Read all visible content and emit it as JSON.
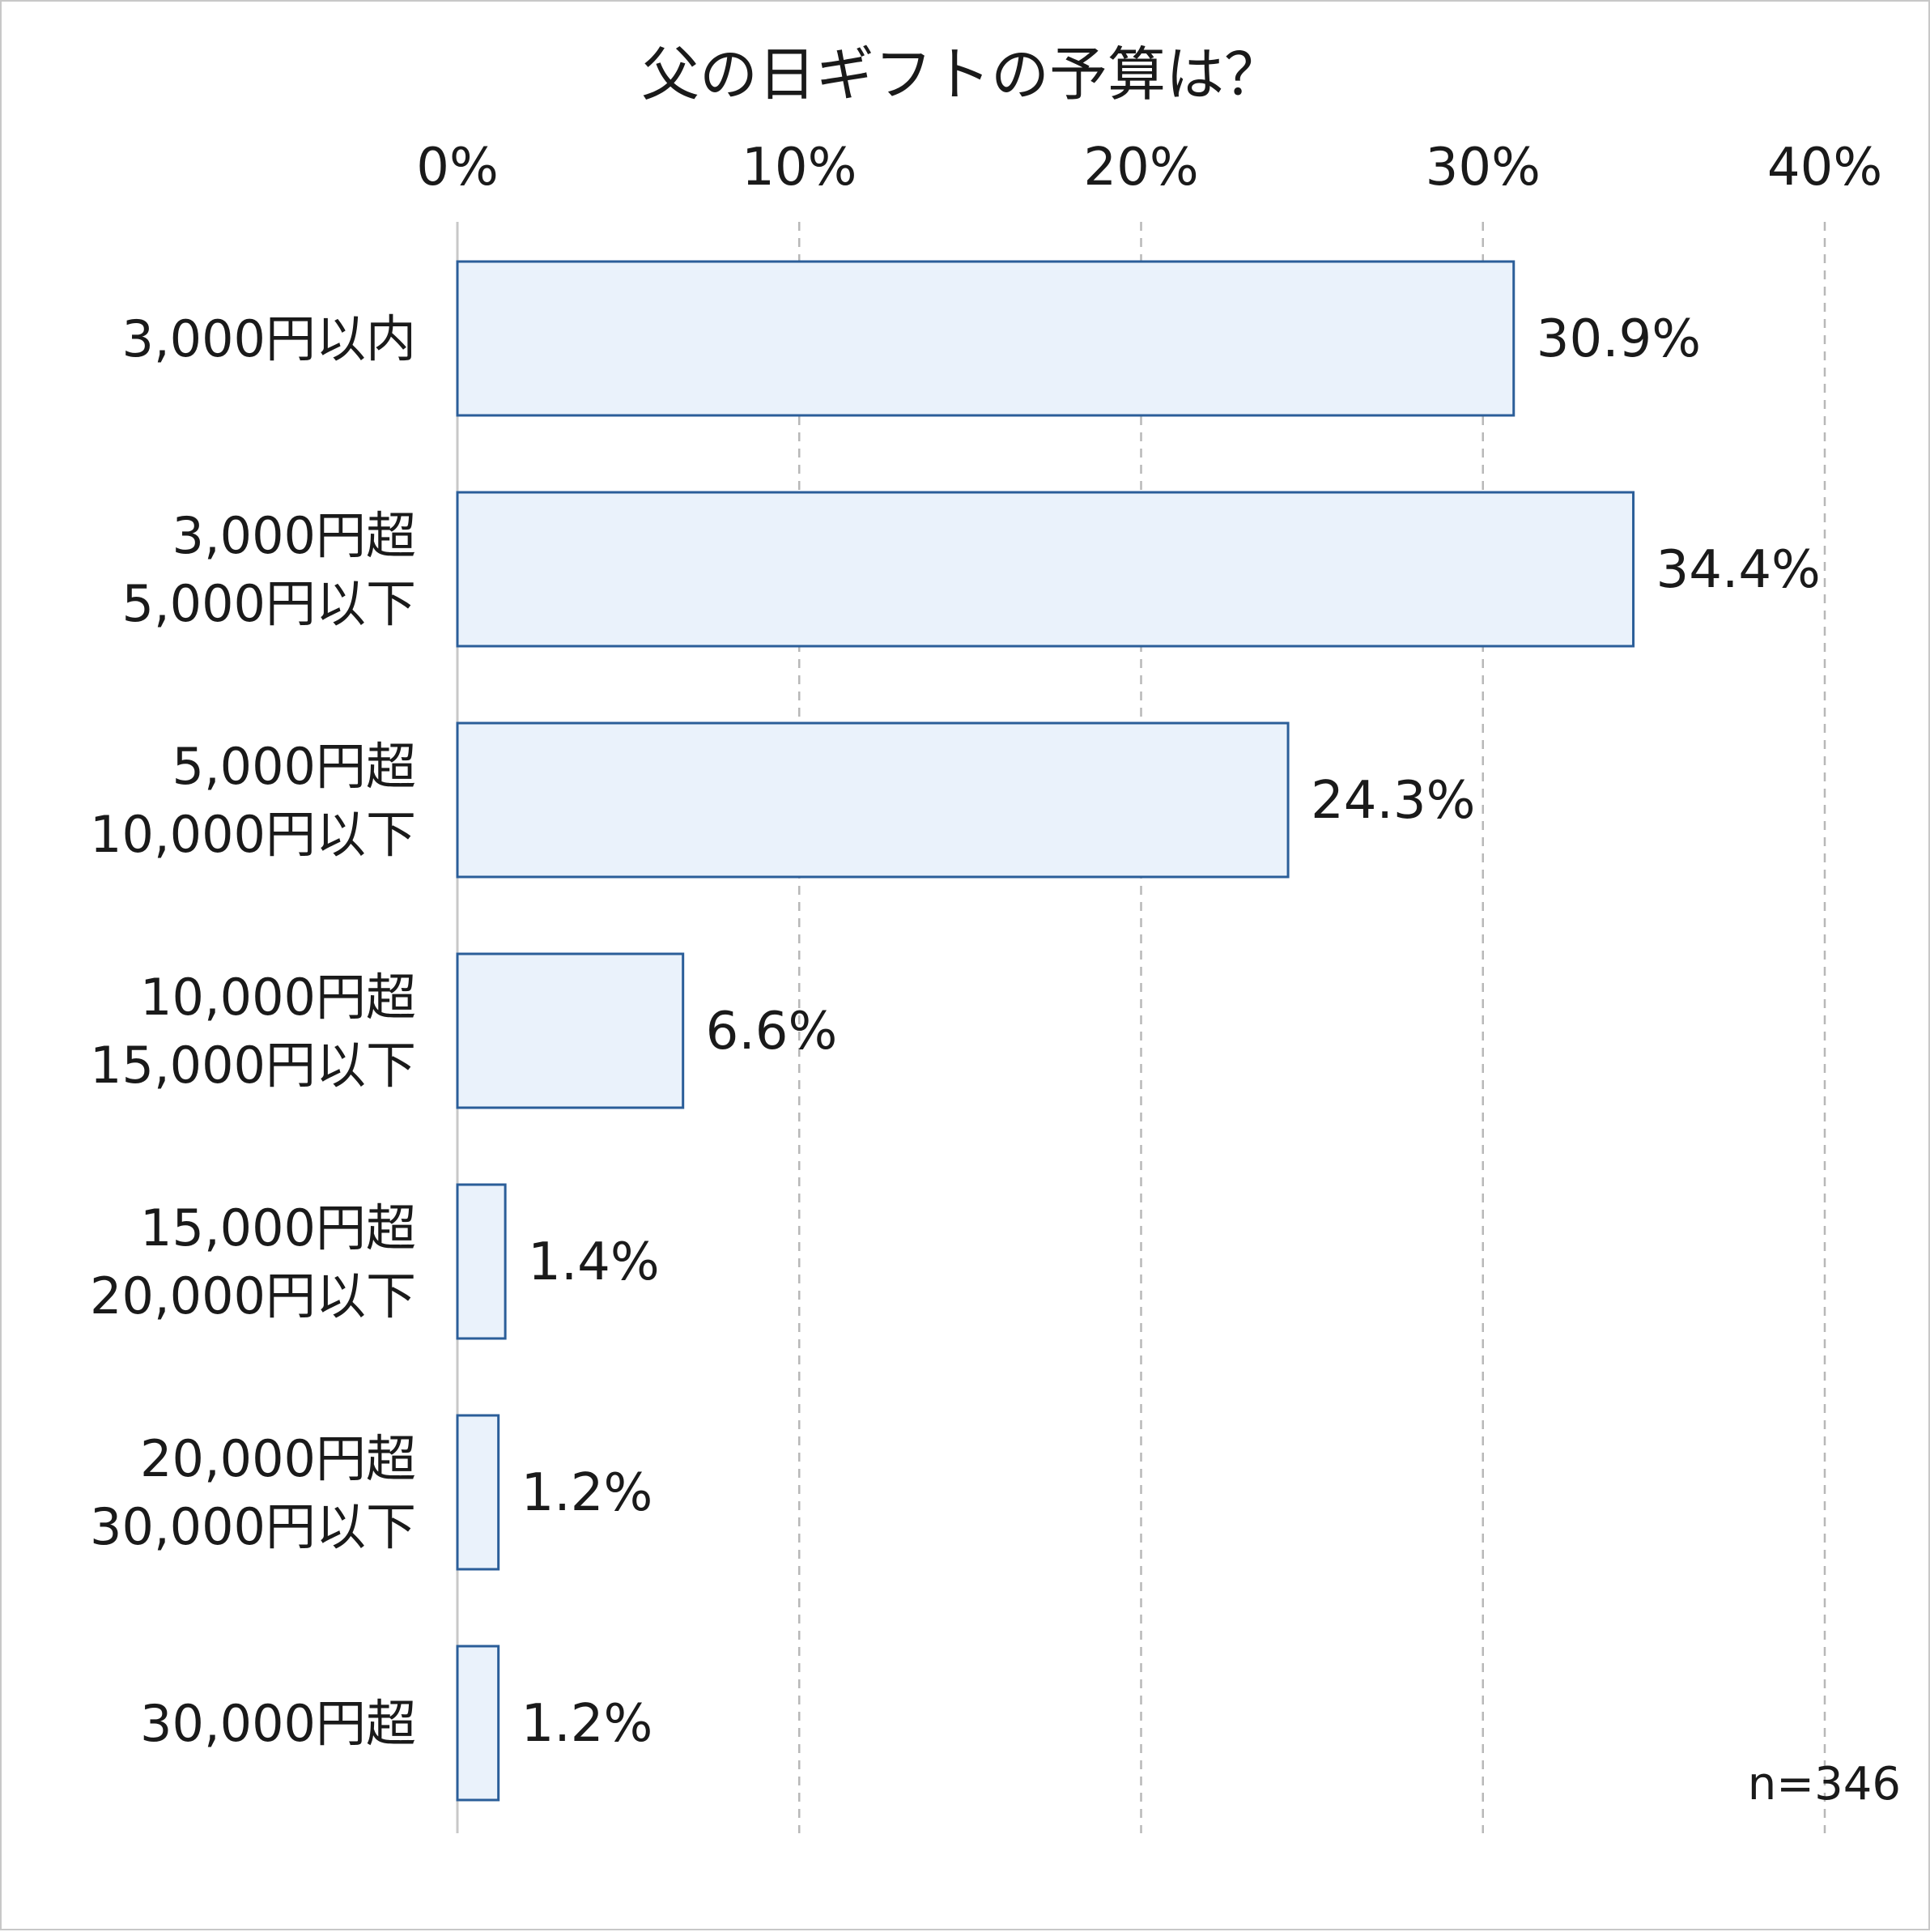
{
  "chart_data": {
    "type": "bar",
    "orientation": "horizontal",
    "title": "父の日ギフトの予算は？",
    "categories": [
      [
        "3,000円以内"
      ],
      [
        "3,000円超",
        "5,000円以下"
      ],
      [
        "5,000円超",
        "10,000円以下"
      ],
      [
        "10,000円超",
        "15,000円以下"
      ],
      [
        "15,000円超",
        "20,000円以下"
      ],
      [
        "20,000円超",
        "30,000円以下"
      ],
      [
        "30,000円超"
      ]
    ],
    "values": [
      30.9,
      34.4,
      24.3,
      6.6,
      1.4,
      1.2,
      1.2
    ],
    "value_labels": [
      "30.9%",
      "34.4%",
      "24.3%",
      "6.6%",
      "1.4%",
      "1.2%",
      "1.2%"
    ],
    "xlim": [
      0,
      40
    ],
    "xticks": [
      0,
      10,
      20,
      30,
      40
    ],
    "xtick_labels": [
      "0%",
      "10%",
      "20%",
      "30%",
      "40%"
    ],
    "x_axis_position": "top",
    "grid": true,
    "legend": "none",
    "note": "n=346",
    "colors": {
      "bar_fill": "#eaf2fb",
      "bar_stroke": "#2b5e99"
    }
  }
}
